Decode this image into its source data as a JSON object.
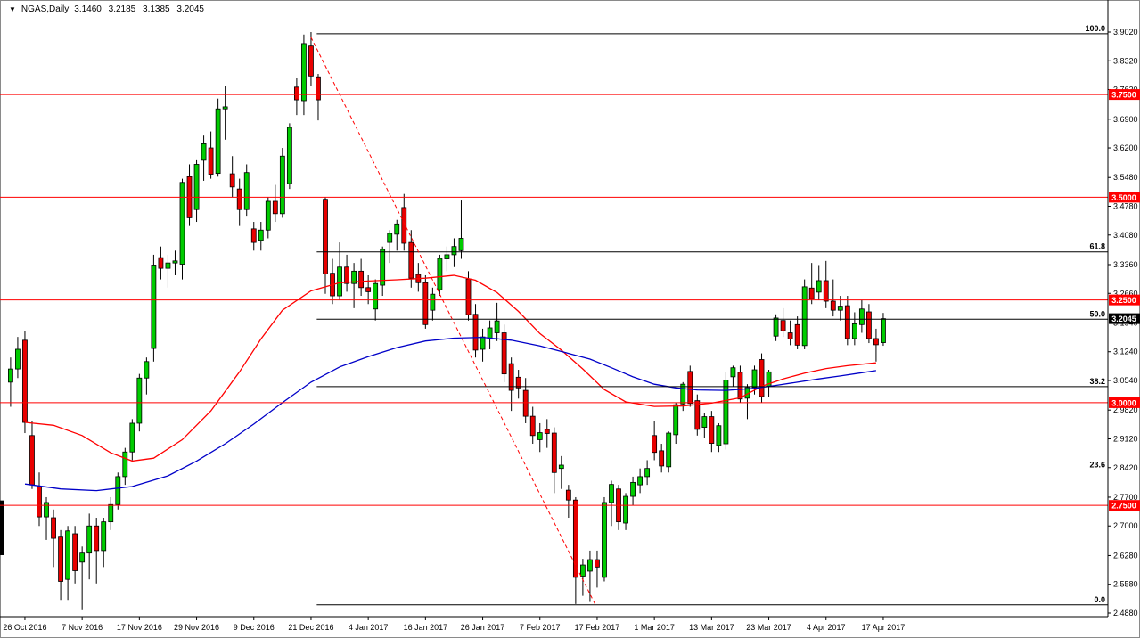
{
  "title": {
    "dropdown_icon": "▼",
    "symbol": "NGAS,Daily",
    "open": "3.1460",
    "high": "3.2185",
    "low": "3.1385",
    "close": "3.2045"
  },
  "colors": {
    "background": "#FFFFFF",
    "bull": "#00CC00",
    "bear": "#E80000",
    "candle_outline": "#000000",
    "wick": "#000000",
    "hline_red": "#FF0000",
    "fib_black": "#000000",
    "trendline_red": "#FF0000",
    "ma_red": "#FF0000",
    "ma_blue": "#0000C8",
    "axis_text": "#000000",
    "tag_red_bg": "#FF0000",
    "tag_current_bg": "#000000",
    "tag_text": "#FFFFFF"
  },
  "chart_data": {
    "type": "candlestick",
    "symbol": "NGAS",
    "timeframe": "Daily",
    "current_bar": {
      "open": 3.146,
      "high": 3.2185,
      "low": 3.1385,
      "close": 3.2045
    },
    "current_price_tag": "3.2045",
    "ylim": [
      2.488,
      3.902
    ],
    "grid": "off",
    "y_ticks": [
      "3.9020",
      "3.8320",
      "3.7620",
      "3.6900",
      "3.6200",
      "3.5480",
      "3.4780",
      "3.4080",
      "3.3360",
      "3.2660",
      "3.1940",
      "3.1240",
      "3.0540",
      "2.9820",
      "2.9120",
      "2.8420",
      "2.7700",
      "2.7000",
      "2.6280",
      "2.5580",
      "2.4880"
    ],
    "x_labels": [
      {
        "text": "26 Oct 2016",
        "bar": 2
      },
      {
        "text": "7 Nov 2016",
        "bar": 10
      },
      {
        "text": "17 Nov 2016",
        "bar": 18
      },
      {
        "text": "29 Nov 2016",
        "bar": 26
      },
      {
        "text": "9 Dec 2016",
        "bar": 34
      },
      {
        "text": "21 Dec 2016",
        "bar": 42
      },
      {
        "text": "4 Jan 2017",
        "bar": 50
      },
      {
        "text": "16 Jan 2017",
        "bar": 58
      },
      {
        "text": "26 Jan 2017",
        "bar": 66
      },
      {
        "text": "7 Feb 2017",
        "bar": 74
      },
      {
        "text": "17 Feb 2017",
        "bar": 82
      },
      {
        "text": "1 Mar 2017",
        "bar": 90
      },
      {
        "text": "13 Mar 2017",
        "bar": 98
      },
      {
        "text": "23 Mar 2017",
        "bar": 106
      },
      {
        "text": "4 Apr 2017",
        "bar": 114
      },
      {
        "text": "17 Apr 2017",
        "bar": 122
      }
    ],
    "horizontal_lines": [
      {
        "price": 3.75,
        "label": "3.7500"
      },
      {
        "price": 3.5,
        "label": "3.5000"
      },
      {
        "price": 3.25,
        "label": "3.2500"
      },
      {
        "price": 3.0,
        "label": "3.0000"
      },
      {
        "price": 2.75,
        "label": "2.7500"
      }
    ],
    "fibonacci": {
      "start_bar": 42.8,
      "levels": [
        {
          "label": "100.0",
          "price": 3.898
        },
        {
          "label": "61.8",
          "price": 3.367
        },
        {
          "label": "50.0",
          "price": 3.203
        },
        {
          "label": "38.2",
          "price": 3.039
        },
        {
          "label": "23.6",
          "price": 2.836
        },
        {
          "label": "0.0",
          "price": 2.508
        }
      ]
    },
    "trendline": {
      "style": "dashed",
      "from_bar": 42,
      "from_price": 3.889,
      "to_bar": 81.7,
      "to_price": 2.51
    },
    "partial_left_candle": {
      "high": 2.762,
      "low": 2.629
    },
    "moving_averages": [
      {
        "name": "ma-red",
        "color": "#FF0000",
        "points": [
          [
            2,
            2.952
          ],
          [
            6,
            2.945
          ],
          [
            10,
            2.92
          ],
          [
            14,
            2.878
          ],
          [
            17,
            2.858
          ],
          [
            20,
            2.865
          ],
          [
            24,
            2.91
          ],
          [
            28,
            2.98
          ],
          [
            32,
            3.075
          ],
          [
            35,
            3.155
          ],
          [
            38,
            3.225
          ],
          [
            42,
            3.272
          ],
          [
            46,
            3.292
          ],
          [
            50,
            3.296
          ],
          [
            54,
            3.299
          ],
          [
            58,
            3.303
          ],
          [
            62,
            3.31
          ],
          [
            65,
            3.298
          ],
          [
            68,
            3.268
          ],
          [
            71,
            3.222
          ],
          [
            74,
            3.168
          ],
          [
            77,
            3.128
          ],
          [
            80,
            3.082
          ],
          [
            83,
            3.032
          ],
          [
            86,
            3.002
          ],
          [
            90,
            2.991
          ],
          [
            94,
            2.992
          ],
          [
            98,
            2.999
          ],
          [
            102,
            3.012
          ],
          [
            105,
            3.04
          ],
          [
            108,
            3.058
          ],
          [
            111,
            3.072
          ],
          [
            114,
            3.083
          ],
          [
            117,
            3.09
          ],
          [
            121,
            3.097
          ]
        ]
      },
      {
        "name": "ma-blue",
        "color": "#0000C8",
        "points": [
          [
            2,
            2.802
          ],
          [
            7,
            2.79
          ],
          [
            12,
            2.786
          ],
          [
            17,
            2.796
          ],
          [
            22,
            2.822
          ],
          [
            26,
            2.858
          ],
          [
            30,
            2.9
          ],
          [
            34,
            2.948
          ],
          [
            38,
            3.0
          ],
          [
            42,
            3.05
          ],
          [
            46,
            3.087
          ],
          [
            50,
            3.112
          ],
          [
            54,
            3.134
          ],
          [
            58,
            3.15
          ],
          [
            62,
            3.157
          ],
          [
            66,
            3.159
          ],
          [
            70,
            3.152
          ],
          [
            74,
            3.138
          ],
          [
            78,
            3.12
          ],
          [
            81,
            3.106
          ],
          [
            84,
            3.085
          ],
          [
            87,
            3.063
          ],
          [
            90,
            3.045
          ],
          [
            93,
            3.036
          ],
          [
            96,
            3.031
          ],
          [
            100,
            3.03
          ],
          [
            104,
            3.035
          ],
          [
            107,
            3.042
          ],
          [
            110,
            3.05
          ],
          [
            113,
            3.058
          ],
          [
            116,
            3.065
          ],
          [
            119,
            3.073
          ],
          [
            121,
            3.078
          ]
        ]
      }
    ],
    "candles_format": [
      "open",
      "high",
      "low",
      "close"
    ],
    "candles": [
      [
        3.05,
        3.11,
        2.99,
        3.082
      ],
      [
        3.082,
        3.16,
        3.06,
        3.13
      ],
      [
        3.152,
        3.175,
        2.926,
        2.952
      ],
      [
        2.92,
        2.955,
        2.79,
        2.8
      ],
      [
        2.796,
        2.83,
        2.7,
        2.722
      ],
      [
        2.722,
        2.77,
        2.666,
        2.757
      ],
      [
        2.72,
        2.74,
        2.6,
        2.67
      ],
      [
        2.673,
        2.69,
        2.52,
        2.565
      ],
      [
        2.57,
        2.7,
        2.52,
        2.688
      ],
      [
        2.681,
        2.7,
        2.56,
        2.591
      ],
      [
        2.612,
        2.65,
        2.495,
        2.634
      ],
      [
        2.634,
        2.73,
        2.57,
        2.7
      ],
      [
        2.7,
        2.72,
        2.56,
        2.64
      ],
      [
        2.64,
        2.72,
        2.6,
        2.71
      ],
      [
        2.71,
        2.77,
        2.69,
        2.752
      ],
      [
        2.752,
        2.83,
        2.74,
        2.82
      ],
      [
        2.82,
        2.89,
        2.8,
        2.88
      ],
      [
        2.88,
        2.96,
        2.86,
        2.95
      ],
      [
        2.95,
        3.07,
        2.93,
        3.06
      ],
      [
        3.06,
        3.11,
        3.02,
        3.1
      ],
      [
        3.132,
        3.36,
        3.1,
        3.335
      ],
      [
        3.353,
        3.38,
        3.3,
        3.327
      ],
      [
        3.327,
        3.36,
        3.28,
        3.34
      ],
      [
        3.34,
        3.37,
        3.31,
        3.345
      ],
      [
        3.337,
        3.545,
        3.3,
        3.536
      ],
      [
        3.55,
        3.58,
        3.43,
        3.45
      ],
      [
        3.47,
        3.59,
        3.44,
        3.58
      ],
      [
        3.59,
        3.65,
        3.54,
        3.63
      ],
      [
        3.62,
        3.66,
        3.545,
        3.556
      ],
      [
        3.558,
        3.74,
        3.55,
        3.715
      ],
      [
        3.715,
        3.77,
        3.64,
        3.72
      ],
      [
        3.557,
        3.6,
        3.5,
        3.525
      ],
      [
        3.52,
        3.545,
        3.43,
        3.47
      ],
      [
        3.47,
        3.58,
        3.455,
        3.56
      ],
      [
        3.423,
        3.44,
        3.37,
        3.39
      ],
      [
        3.395,
        3.44,
        3.37,
        3.42
      ],
      [
        3.42,
        3.5,
        3.4,
        3.49
      ],
      [
        3.49,
        3.53,
        3.44,
        3.46
      ],
      [
        3.46,
        3.62,
        3.45,
        3.6
      ],
      [
        3.533,
        3.68,
        3.52,
        3.67
      ],
      [
        3.768,
        3.79,
        3.7,
        3.737
      ],
      [
        3.735,
        3.896,
        3.7,
        3.874
      ],
      [
        3.868,
        3.902,
        3.77,
        3.795
      ],
      [
        3.793,
        3.8,
        3.687,
        3.737
      ],
      [
        3.495,
        3.5,
        3.265,
        3.313
      ],
      [
        3.315,
        3.35,
        3.24,
        3.26
      ],
      [
        3.26,
        3.39,
        3.25,
        3.33
      ],
      [
        3.33,
        3.36,
        3.27,
        3.29
      ],
      [
        3.29,
        3.34,
        3.23,
        3.32
      ],
      [
        3.32,
        3.35,
        3.26,
        3.28
      ],
      [
        3.28,
        3.31,
        3.24,
        3.27
      ],
      [
        3.228,
        3.3,
        3.2,
        3.29
      ],
      [
        3.286,
        3.38,
        3.26,
        3.373
      ],
      [
        3.39,
        3.42,
        3.34,
        3.412
      ],
      [
        3.41,
        3.445,
        3.37,
        3.435
      ],
      [
        3.475,
        3.508,
        3.37,
        3.388
      ],
      [
        3.39,
        3.42,
        3.28,
        3.303
      ],
      [
        3.312,
        3.34,
        3.27,
        3.292
      ],
      [
        3.292,
        3.31,
        3.18,
        3.19
      ],
      [
        3.225,
        3.28,
        3.2,
        3.264
      ],
      [
        3.275,
        3.36,
        3.26,
        3.351
      ],
      [
        3.35,
        3.38,
        3.32,
        3.36
      ],
      [
        3.36,
        3.4,
        3.33,
        3.38
      ],
      [
        3.37,
        3.492,
        3.35,
        3.4
      ],
      [
        3.301,
        3.32,
        3.2,
        3.214
      ],
      [
        3.215,
        3.24,
        3.11,
        3.128
      ],
      [
        3.13,
        3.18,
        3.1,
        3.16
      ],
      [
        3.156,
        3.2,
        3.13,
        3.182
      ],
      [
        3.17,
        3.243,
        3.15,
        3.199
      ],
      [
        3.17,
        3.19,
        3.05,
        3.07
      ],
      [
        3.095,
        3.11,
        2.98,
        3.03
      ],
      [
        3.062,
        3.08,
        3.01,
        3.036
      ],
      [
        3.03,
        3.06,
        2.95,
        2.967
      ],
      [
        2.967,
        2.99,
        2.9,
        2.92
      ],
      [
        2.91,
        2.95,
        2.88,
        2.927
      ],
      [
        2.935,
        2.96,
        2.89,
        2.925
      ],
      [
        2.926,
        2.94,
        2.78,
        2.83
      ],
      [
        2.84,
        2.87,
        2.79,
        2.848
      ],
      [
        2.787,
        2.8,
        2.72,
        2.763
      ],
      [
        2.763,
        2.77,
        2.51,
        2.575
      ],
      [
        2.578,
        2.62,
        2.53,
        2.605
      ],
      [
        2.59,
        2.64,
        2.515,
        2.618
      ],
      [
        2.618,
        2.64,
        2.55,
        2.6
      ],
      [
        2.575,
        2.77,
        2.565,
        2.757
      ],
      [
        2.757,
        2.81,
        2.7,
        2.801
      ],
      [
        2.79,
        2.8,
        2.69,
        2.71
      ],
      [
        2.707,
        2.78,
        2.69,
        2.772
      ],
      [
        2.772,
        2.82,
        2.75,
        2.806
      ],
      [
        2.8,
        2.84,
        2.78,
        2.82
      ],
      [
        2.82,
        2.86,
        2.8,
        2.84
      ],
      [
        2.92,
        2.955,
        2.86,
        2.879
      ],
      [
        2.883,
        2.9,
        2.83,
        2.846
      ],
      [
        2.844,
        2.93,
        2.83,
        2.926
      ],
      [
        2.922,
        3.0,
        2.9,
        2.995
      ],
      [
        2.997,
        3.05,
        2.98,
        3.045
      ],
      [
        3.076,
        3.09,
        2.99,
        2.998
      ],
      [
        3.005,
        3.02,
        2.92,
        2.935
      ],
      [
        2.94,
        2.975,
        2.915,
        2.966
      ],
      [
        2.966,
        2.98,
        2.88,
        2.901
      ],
      [
        2.896,
        2.95,
        2.88,
        2.944
      ],
      [
        2.9,
        3.075,
        2.886,
        3.055
      ],
      [
        3.063,
        3.09,
        3.04,
        3.085
      ],
      [
        3.074,
        3.09,
        3.0,
        3.009
      ],
      [
        3.011,
        3.045,
        2.96,
        3.037
      ],
      [
        3.037,
        3.09,
        3.02,
        3.08
      ],
      [
        3.105,
        3.12,
        3.0,
        3.015
      ],
      [
        3.04,
        3.08,
        3.015,
        3.075
      ],
      [
        3.162,
        3.215,
        3.15,
        3.206
      ],
      [
        3.2,
        3.23,
        3.16,
        3.175
      ],
      [
        3.17,
        3.2,
        3.14,
        3.155
      ],
      [
        3.19,
        3.21,
        3.13,
        3.14
      ],
      [
        3.139,
        3.3,
        3.13,
        3.282
      ],
      [
        3.279,
        3.34,
        3.24,
        3.253
      ],
      [
        3.269,
        3.335,
        3.25,
        3.297
      ],
      [
        3.297,
        3.345,
        3.23,
        3.247
      ],
      [
        3.247,
        3.3,
        3.21,
        3.225
      ],
      [
        3.225,
        3.26,
        3.2,
        3.235
      ],
      [
        3.236,
        3.26,
        3.14,
        3.156
      ],
      [
        3.156,
        3.22,
        3.14,
        3.192
      ],
      [
        3.19,
        3.25,
        3.17,
        3.228
      ],
      [
        3.221,
        3.24,
        3.145,
        3.156
      ],
      [
        3.156,
        3.18,
        3.1,
        3.141
      ],
      [
        3.146,
        3.2185,
        3.1385,
        3.2045
      ]
    ]
  }
}
